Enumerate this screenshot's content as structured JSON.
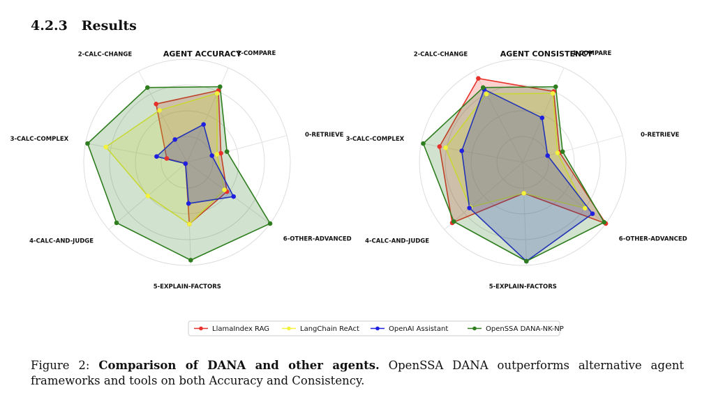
{
  "section": {
    "number": "4.2.3",
    "title": "Results"
  },
  "legend": [
    {
      "label": "LlamaIndex RAG",
      "color": "#e8312a"
    },
    {
      "label": "LangChain ReAct",
      "color": "#f2f23c"
    },
    {
      "label": "OpenAI Assistant",
      "color": "#1f1fe0"
    },
    {
      "label": "OpenSSA DANA-NK-NP",
      "color": "#2e7d1e"
    }
  ],
  "chart_data": [
    {
      "type": "radar",
      "title": "AGENT ACCURACY",
      "categories": [
        "0-RETRIEVE",
        "1-COMPARE",
        "2-CALC-CHANGE",
        "3-CALC-COMPLEX",
        "4-CALC-AND-JUDGE",
        "5-EXPLAIN-FACTORS",
        "6-OTHER-ADVANCED"
      ],
      "rlim": [
        0,
        1
      ],
      "grid": true,
      "series": [
        {
          "name": "LlamaIndex RAG",
          "values": [
            0.34,
            0.76,
            0.64,
            0.2,
            0.02,
            0.6,
            0.48
          ]
        },
        {
          "name": "LangChain ReAct",
          "values": [
            0.3,
            0.73,
            0.57,
            0.8,
            0.5,
            0.6,
            0.45
          ]
        },
        {
          "name": "OpenAI Assistant",
          "values": [
            0.25,
            0.4,
            0.25,
            0.3,
            0.02,
            0.4,
            0.56
          ]
        },
        {
          "name": "OpenSSA DANA-NK-NP",
          "values": [
            0.4,
            0.8,
            0.82,
            0.98,
            0.9,
            0.95,
            1.0
          ]
        }
      ]
    },
    {
      "type": "radar",
      "title": "AGENT CONSISTENCY",
      "categories": [
        "0-RETRIEVE",
        "1-COMPARE",
        "2-CALC-CHANGE",
        "3-CALC-COMPLEX",
        "4-CALC-AND-JUDGE",
        "5-EXPLAIN-FACTORS",
        "6-OTHER-ADVANCED"
      ],
      "rlim": [
        0,
        1
      ],
      "grid": true,
      "series": [
        {
          "name": "LlamaIndex RAG",
          "values": [
            0.37,
            0.75,
            0.92,
            0.82,
            0.9,
            0.3,
            1.0
          ]
        },
        {
          "name": "LangChain ReAct",
          "values": [
            0.35,
            0.73,
            0.75,
            0.76,
            0.67,
            0.3,
            0.75
          ]
        },
        {
          "name": "OpenAI Assistant",
          "values": [
            0.25,
            0.47,
            0.8,
            0.6,
            0.68,
            0.96,
            0.84
          ]
        },
        {
          "name": "OpenSSA DANA-NK-NP",
          "values": [
            0.4,
            0.8,
            0.82,
            0.98,
            0.88,
            0.96,
            0.98
          ]
        }
      ]
    }
  ],
  "caption": {
    "prefix": "Figure 2: ",
    "bold": "Comparison of DANA and other agents.",
    "rest": " OpenSSA DANA outperforms alternative agent frameworks and tools on both Accuracy and Consistency."
  }
}
